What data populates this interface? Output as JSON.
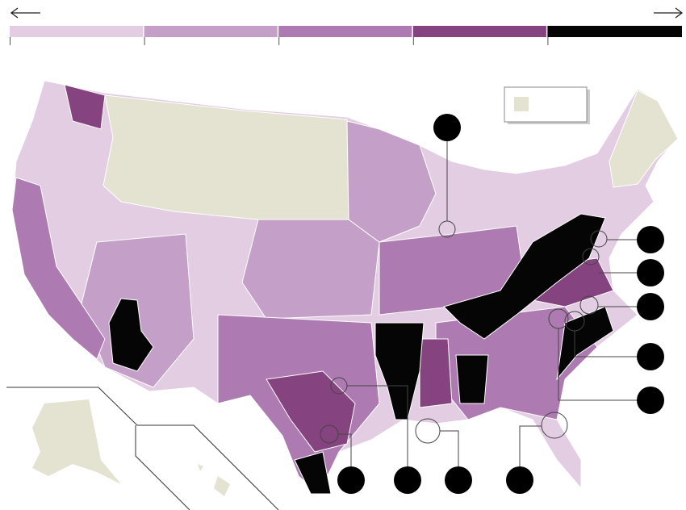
{
  "legend": {
    "colors": [
      "#e2cde3",
      "#c49fc7",
      "#ad7bb1",
      "#85437f",
      "#050505"
    ]
  },
  "no_data_color": "#e4e2d0"
}
